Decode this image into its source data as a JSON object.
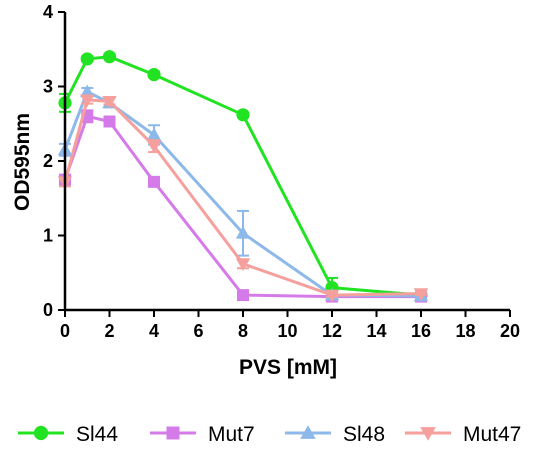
{
  "chart_data": {
    "type": "line",
    "title": "",
    "xlabel": "PVS [mM]",
    "ylabel": "OD595nm",
    "xlim": [
      0,
      20
    ],
    "ylim": [
      0,
      4
    ],
    "xticks": [
      0,
      2,
      4,
      6,
      8,
      10,
      12,
      14,
      16,
      18,
      20
    ],
    "yticks": [
      0,
      1,
      2,
      3,
      4
    ],
    "xtick_labels": [
      "0",
      "2",
      "4",
      "6",
      "8",
      "10",
      "12",
      "14",
      "16",
      "18",
      "20"
    ],
    "ytick_labels": [
      "0",
      "1",
      "2",
      "3",
      "4"
    ],
    "grid": false,
    "legend_position": "bottom",
    "x": [
      0,
      1,
      2,
      4,
      8,
      12,
      16
    ],
    "series": [
      {
        "name": "Sl44",
        "color": "#22e322",
        "marker": "circle",
        "values": [
          2.78,
          3.37,
          3.4,
          3.16,
          2.62,
          0.3,
          0.2
        ],
        "errors": [
          0.12,
          0.03,
          0.03,
          0.03,
          0.03,
          0.13,
          0.02
        ]
      },
      {
        "name": "Mut7",
        "color": "#d57be9",
        "marker": "square",
        "values": [
          1.75,
          2.6,
          2.53,
          1.72,
          0.2,
          0.18,
          0.18
        ],
        "errors": [
          0.04,
          0.08,
          0.06,
          0.04,
          0.02,
          0.02,
          0.02
        ]
      },
      {
        "name": "Sl48",
        "color": "#8db8ea",
        "marker": "triangle-up",
        "values": [
          2.15,
          2.93,
          2.78,
          2.35,
          1.03,
          0.2,
          0.19
        ],
        "errors": [
          0.08,
          0.05,
          0.06,
          0.13,
          0.3,
          0.05,
          0.03
        ]
      },
      {
        "name": "Mut47",
        "color": "#f5a09c",
        "marker": "triangle-down",
        "values": [
          1.72,
          2.82,
          2.8,
          2.2,
          0.62,
          0.2,
          0.22
        ],
        "errors": [
          0.06,
          0.05,
          0.04,
          0.08,
          0.06,
          0.02,
          0.02
        ]
      }
    ]
  }
}
